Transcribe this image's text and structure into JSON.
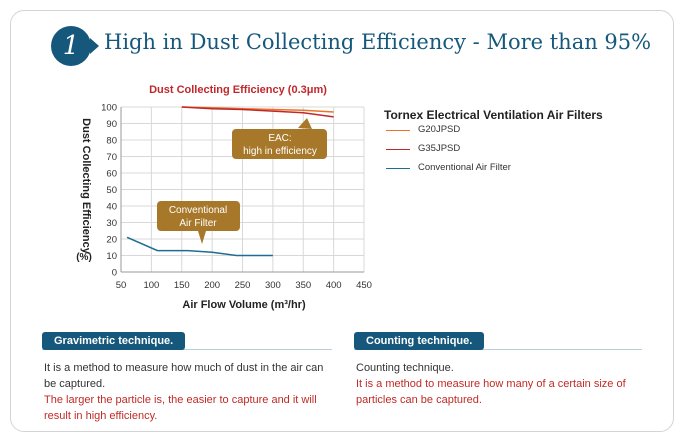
{
  "header": {
    "badge_number": "1",
    "title": "High in Dust Collecting Efficiency - More than 95%"
  },
  "colors": {
    "brand_blue": "#15587c",
    "callout_brown": "#a8782a",
    "g20_line": "#e8742a",
    "g35_line": "#c0282c",
    "conventional_line": "#1d6e92",
    "highlight_red": "#c02a26"
  },
  "legend": {
    "title": "Tornex Electrical  Ventilation Air Filters",
    "items": [
      {
        "label": "G20JPSD",
        "color": "#e8742a"
      },
      {
        "label": "G35JPSD",
        "color": "#c0282c"
      },
      {
        "label": "Conventional Air Filter",
        "color": "#1d6e92"
      }
    ]
  },
  "chart_data": {
    "type": "line",
    "title": "Dust Collecting Efficiency (0.3μm)",
    "xlabel": "Air Flow Volume  (m³/hr)",
    "ylabel": "Dust Collecting Efficiency",
    "ylabel_unit": "(%)",
    "xlim": [
      50,
      450
    ],
    "ylim": [
      0,
      100
    ],
    "x_ticks": [
      50,
      100,
      150,
      200,
      250,
      300,
      350,
      400,
      450
    ],
    "y_ticks": [
      0,
      10,
      20,
      30,
      40,
      50,
      60,
      70,
      80,
      90,
      100
    ],
    "grid": true,
    "series": [
      {
        "name": "G20JPSD",
        "color": "#e8742a",
        "points": [
          [
            150,
            100
          ],
          [
            200,
            99.5
          ],
          [
            250,
            99
          ],
          [
            300,
            98.5
          ],
          [
            350,
            98
          ],
          [
            400,
            97
          ]
        ]
      },
      {
        "name": "G35JPSD",
        "color": "#c0282c",
        "points": [
          [
            150,
            100
          ],
          [
            200,
            99
          ],
          [
            250,
            98.5
          ],
          [
            300,
            97.5
          ],
          [
            350,
            96.5
          ],
          [
            400,
            94
          ]
        ]
      },
      {
        "name": "Conventional Air Filter",
        "color": "#1d6e92",
        "points": [
          [
            60,
            21
          ],
          [
            110,
            13
          ],
          [
            160,
            13
          ],
          [
            200,
            12
          ],
          [
            240,
            10
          ],
          [
            300,
            10
          ]
        ]
      }
    ],
    "annotations": [
      {
        "text_lines": [
          "EAC:",
          "high in efficiency"
        ],
        "target": "G35JPSD"
      },
      {
        "text_lines": [
          "Conventional",
          "Air Filter"
        ],
        "target": "Conventional Air Filter"
      }
    ]
  },
  "sections": [
    {
      "heading": "Gravimetric technique.",
      "body": "It is a method to measure how much of dust in the air can be captured.",
      "highlight": "The larger the particle is, the easier to capture and it will result in high efficiency."
    },
    {
      "heading": "Counting technique.",
      "body": "Counting technique.",
      "highlight": "It is a method to measure how many of a certain size of particles can be captured."
    }
  ]
}
